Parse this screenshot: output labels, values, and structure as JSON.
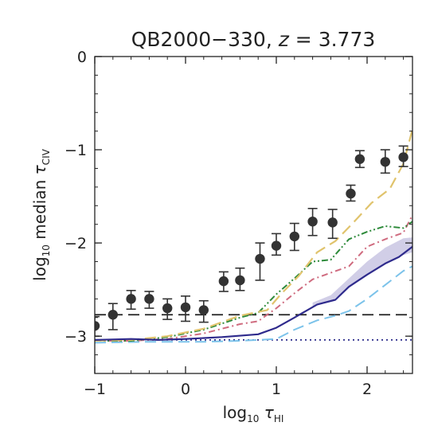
{
  "chart_data": {
    "type": "line",
    "title": {
      "prefix": "QB2000−330, ",
      "var": "z",
      "suffix": " = 3.773"
    },
    "xlabel": {
      "main": "log",
      "sub": "10",
      "sym": " τ",
      "symsub": "HI"
    },
    "ylabel": {
      "main": "log",
      "sub": "10",
      "rest": " median ",
      "sym": "τ",
      "symsub": "CIV"
    },
    "xlim": [
      -1,
      2.5
    ],
    "ylim": [
      -3.4,
      0
    ],
    "xticks": [
      {
        "value": -1,
        "label": "−1"
      },
      {
        "value": 0,
        "label": "0"
      },
      {
        "value": 1,
        "label": "1"
      },
      {
        "value": 2,
        "label": "2"
      }
    ],
    "yticks": [
      {
        "value": 0,
        "label": "0"
      },
      {
        "value": -1,
        "label": "−1"
      },
      {
        "value": -2,
        "label": "−2"
      },
      {
        "value": -3,
        "label": "−3"
      }
    ],
    "grid": false,
    "observed_points": {
      "color": "#333333",
      "points": [
        {
          "x": -1.0,
          "y": -2.89,
          "lo": -3.0,
          "hi": -2.79
        },
        {
          "x": -0.8,
          "y": -2.77,
          "lo": -2.93,
          "hi": -2.65
        },
        {
          "x": -0.6,
          "y": -2.6,
          "lo": -2.71,
          "hi": -2.51
        },
        {
          "x": -0.4,
          "y": -2.6,
          "lo": -2.7,
          "hi": -2.52
        },
        {
          "x": -0.2,
          "y": -2.7,
          "lo": -2.82,
          "hi": -2.6
        },
        {
          "x": 0.0,
          "y": -2.69,
          "lo": -2.84,
          "hi": -2.57
        },
        {
          "x": 0.2,
          "y": -2.72,
          "lo": -2.85,
          "hi": -2.62
        },
        {
          "x": 0.42,
          "y": -2.41,
          "lo": -2.52,
          "hi": -2.31
        },
        {
          "x": 0.6,
          "y": -2.4,
          "lo": -2.51,
          "hi": -2.27
        },
        {
          "x": 0.82,
          "y": -2.17,
          "lo": -2.4,
          "hi": -2.0
        },
        {
          "x": 1.0,
          "y": -2.03,
          "lo": -2.13,
          "hi": -1.9
        },
        {
          "x": 1.2,
          "y": -1.93,
          "lo": -2.08,
          "hi": -1.79
        },
        {
          "x": 1.4,
          "y": -1.77,
          "lo": -1.92,
          "hi": -1.63
        },
        {
          "x": 1.62,
          "y": -1.78,
          "lo": -1.95,
          "hi": -1.64
        },
        {
          "x": 1.82,
          "y": -1.47,
          "lo": -1.55,
          "hi": -1.38
        },
        {
          "x": 1.92,
          "y": -1.1,
          "lo": -1.19,
          "hi": -1.01
        },
        {
          "x": 2.2,
          "y": -1.13,
          "lo": -1.25,
          "hi": -1.0
        },
        {
          "x": 2.4,
          "y": -1.08,
          "lo": -1.18,
          "hi": -0.96
        }
      ]
    },
    "reference_lines": [
      {
        "y": -2.77,
        "color": "#222222",
        "style": "long-dash"
      },
      {
        "y": -3.04,
        "color": "#2a2a8a",
        "style": "dotted"
      }
    ],
    "band": {
      "color": "#c9c5e3",
      "x": [
        1.4,
        1.6,
        1.8,
        2.0,
        2.2,
        2.4,
        2.5
      ],
      "lo": [
        -2.68,
        -2.63,
        -2.48,
        -2.34,
        -2.23,
        -2.13,
        -2.1
      ],
      "hi": [
        -2.64,
        -2.56,
        -2.38,
        -2.2,
        -2.05,
        -1.95,
        -1.94
      ]
    },
    "series": [
      {
        "color": "#2e2a8c",
        "style": "solid",
        "width": 2.2,
        "x": [
          -1.0,
          -0.6,
          -0.3,
          0.0,
          0.4,
          0.8,
          1.0,
          1.2,
          1.45,
          1.65,
          1.8,
          2.0,
          2.2,
          2.35,
          2.5
        ],
        "y": [
          -3.04,
          -3.03,
          -3.04,
          -3.03,
          -3.01,
          -2.98,
          -2.91,
          -2.8,
          -2.66,
          -2.61,
          -2.47,
          -2.34,
          -2.22,
          -2.15,
          -2.04
        ]
      },
      {
        "color": "#7cc3ea",
        "style": "long-dash",
        "width": 2,
        "x": [
          -1.0,
          -0.4,
          0.2,
          0.6,
          1.0,
          1.2,
          1.45,
          1.65,
          1.8,
          2.0,
          2.2,
          2.4,
          2.5
        ],
        "y": [
          -3.07,
          -3.06,
          -3.06,
          -3.05,
          -3.03,
          -2.93,
          -2.83,
          -2.78,
          -2.73,
          -2.6,
          -2.45,
          -2.3,
          -2.25
        ]
      },
      {
        "color": "#cf6b7f",
        "style": "dash-dot",
        "width": 2,
        "x": [
          -1.0,
          -0.6,
          -0.2,
          0.2,
          0.6,
          0.8,
          1.0,
          1.2,
          1.4,
          1.6,
          1.8,
          2.0,
          2.2,
          2.4,
          2.5
        ],
        "y": [
          -3.05,
          -3.05,
          -3.03,
          -2.97,
          -2.87,
          -2.84,
          -2.7,
          -2.54,
          -2.39,
          -2.32,
          -2.25,
          -2.04,
          -1.96,
          -1.89,
          -1.7
        ]
      },
      {
        "color": "#2d8a3a",
        "style": "dash-dot-dot",
        "width": 2,
        "x": [
          -1.0,
          -0.6,
          -0.2,
          0.2,
          0.6,
          0.8,
          1.0,
          1.2,
          1.4,
          1.6,
          1.8,
          2.0,
          2.2,
          2.4,
          2.5
        ],
        "y": [
          -3.05,
          -3.05,
          -3.01,
          -2.93,
          -2.8,
          -2.75,
          -2.55,
          -2.38,
          -2.2,
          -2.18,
          -1.96,
          -1.88,
          -1.82,
          -1.84,
          -1.77
        ]
      },
      {
        "color": "#e0c36c",
        "style": "long-dash",
        "width": 2.2,
        "x": [
          -1.0,
          -0.6,
          -0.2,
          0.2,
          0.6,
          0.9,
          1.05,
          1.25,
          1.45,
          1.65,
          1.85,
          2.05,
          2.25,
          2.4,
          2.5
        ],
        "y": [
          -3.05,
          -3.04,
          -3.0,
          -2.92,
          -2.78,
          -2.72,
          -2.55,
          -2.35,
          -2.1,
          -1.98,
          -1.78,
          -1.57,
          -1.42,
          -1.15,
          -0.78
        ]
      }
    ]
  }
}
